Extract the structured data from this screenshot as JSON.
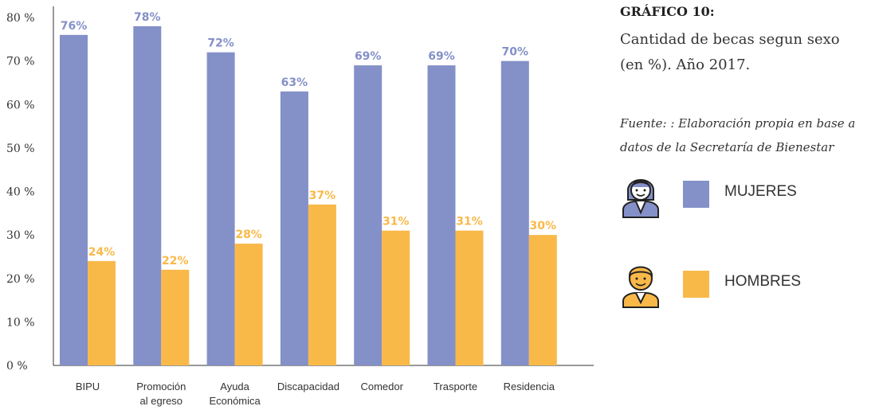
{
  "chart_data": {
    "type": "bar",
    "categories": [
      "BIPU",
      "Promoción al egreso",
      "Ayuda Económica",
      "Discapacidad",
      "Comedor",
      "Trasporte",
      "Residencia"
    ],
    "category_lines": [
      [
        "BIPU"
      ],
      [
        "Promoción",
        "al egreso"
      ],
      [
        "Ayuda",
        "Económica"
      ],
      [
        "Discapacidad"
      ],
      [
        "Comedor"
      ],
      [
        "Trasporte"
      ],
      [
        "Residencia"
      ]
    ],
    "series": [
      {
        "name": "MUJERES",
        "color": "#8490c8",
        "values": [
          76,
          78,
          72,
          63,
          69,
          69,
          70
        ],
        "labels": [
          "76%",
          "78%",
          "72%",
          "63%",
          "69%",
          "69%",
          "70%"
        ]
      },
      {
        "name": "HOMBRES",
        "color": "#f9b949",
        "values": [
          24,
          22,
          28,
          37,
          31,
          31,
          30
        ],
        "labels": [
          "24%",
          "22%",
          "28%",
          "37%",
          "31%",
          "31%",
          "30%"
        ]
      }
    ],
    "ylim": [
      0,
      80
    ],
    "y_ticks": [
      0,
      10,
      20,
      30,
      40,
      50,
      60,
      70,
      80
    ],
    "y_tick_labels": [
      "0 %",
      "10 %",
      "20 %",
      "30 %",
      "40 %",
      "50 %",
      "60 %",
      "70 %",
      "80 %"
    ],
    "grid": false,
    "legend_position": "right"
  },
  "panel": {
    "title": "GRÁFICO 10:",
    "subtitle": "Cantidad de becas segun sexo (en %). Año 2017.",
    "source": "Fuente: : Elaboración propia en base a datos de la Secretaría de Bienestar"
  },
  "legend": {
    "women_label": "MUJERES",
    "men_label": "HOMBRES",
    "women_icon": "woman-avatar-icon",
    "men_icon": "man-avatar-icon",
    "women_color": "#8490c8",
    "men_color": "#f9b949"
  }
}
